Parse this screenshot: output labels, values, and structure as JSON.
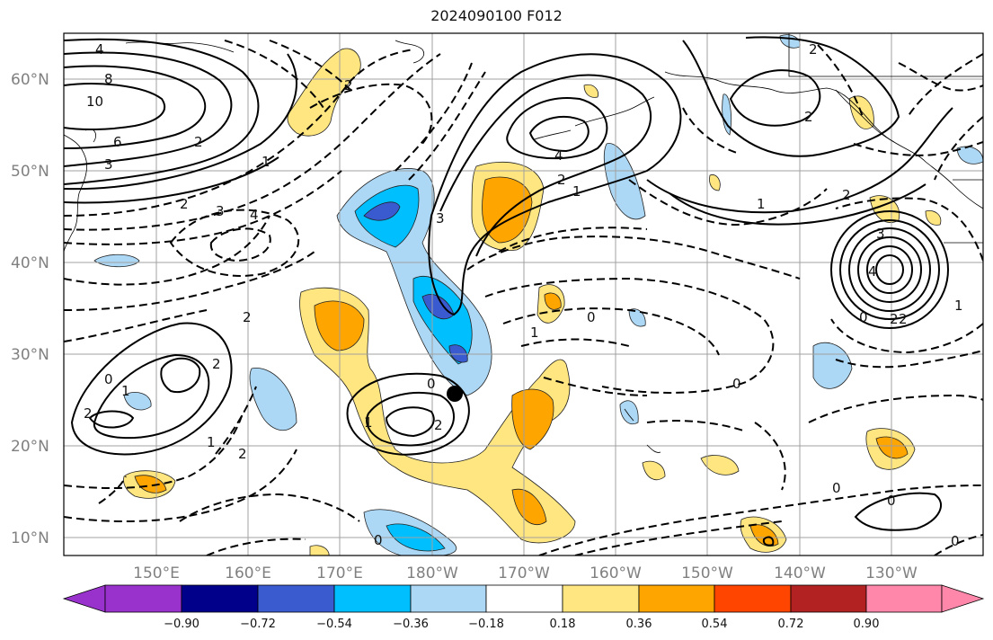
{
  "map": {
    "title": "2024090100 F012",
    "lon_labels": [
      "150°E",
      "160°E",
      "170°E",
      "180°W",
      "170°W",
      "160°W",
      "150°W",
      "140°W",
      "130°W"
    ],
    "lat_labels": [
      "60°N",
      "50°N",
      "40°N",
      "30°N",
      "20°N",
      "10°N"
    ],
    "contour_labels": [
      "4",
      "8",
      "10",
      "6",
      "3",
      "2",
      "1",
      "2",
      "3",
      "4",
      "2",
      "1",
      "0",
      "3",
      "4",
      "2",
      "1",
      "2",
      "1",
      "2",
      "3",
      "4",
      "2",
      "0",
      "1",
      "0",
      "1",
      "2",
      "2",
      "2",
      "0",
      "0",
      "0",
      "0",
      "2",
      "0",
      "1",
      "2",
      "1",
      "0",
      "2",
      "2"
    ],
    "marker": "storm-center"
  },
  "colorbar": {
    "tick_labels": [
      "−0.90",
      "−0.72",
      "−0.54",
      "−0.36",
      "−0.18",
      "0.18",
      "0.36",
      "0.54",
      "0.72",
      "0.90"
    ],
    "colors": [
      "#9932CC",
      "#00008B",
      "#3A5BD0",
      "#00BFFF",
      "#ADD8F5",
      "#FFFFFF",
      "#FFE680",
      "#FFA500",
      "#FF4500",
      "#B22222",
      "#FF88AA"
    ]
  }
}
